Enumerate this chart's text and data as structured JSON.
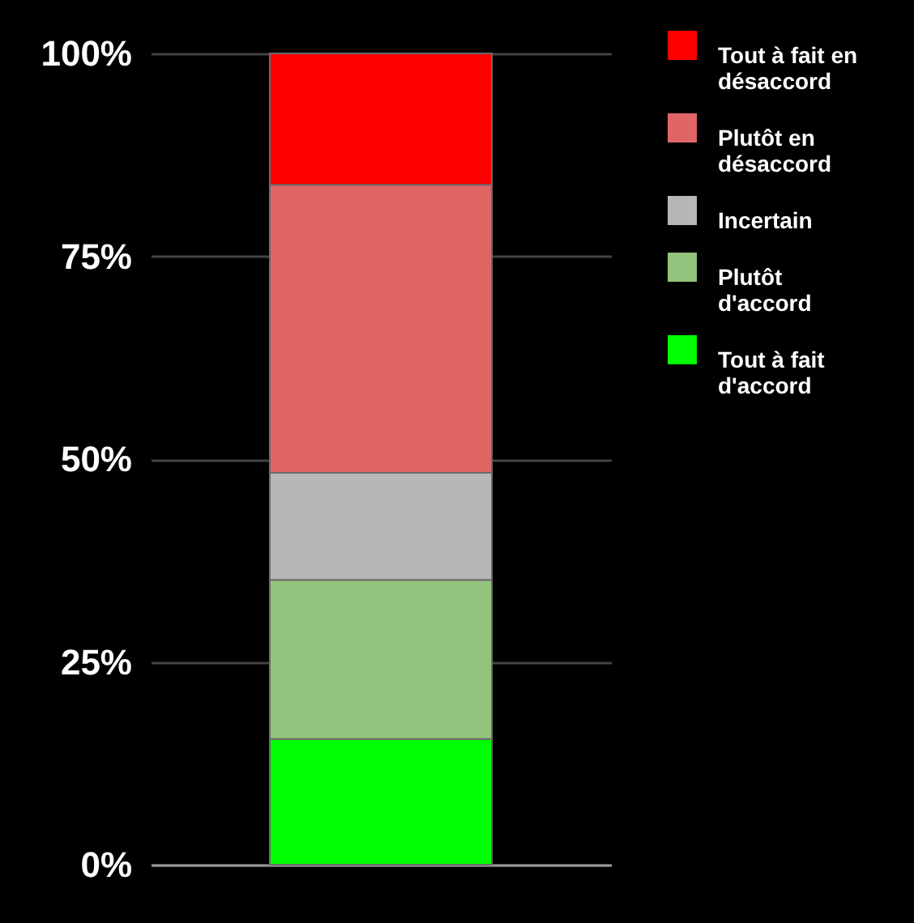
{
  "chart_data": {
    "type": "bar",
    "stacked": true,
    "categories": [
      null
    ],
    "series": [
      {
        "name": "Tout à fait d'accord",
        "color": "#00ff00",
        "values": [
          15.5
        ]
      },
      {
        "name": "Plutôt d'accord",
        "color": "#93c47d",
        "values": [
          19.6
        ]
      },
      {
        "name": "Incertain",
        "color": "#b7b7b7",
        "values": [
          13.2
        ]
      },
      {
        "name": "Plutôt en désaccord",
        "color": "#e06666",
        "values": [
          35.5
        ]
      },
      {
        "name": "Tout à fait en désaccord",
        "color": "#ff0000",
        "values": [
          16.2
        ]
      }
    ],
    "ylim": [
      0,
      100
    ],
    "yticks": [
      {
        "value": 0,
        "label": "0%"
      },
      {
        "value": 25,
        "label": "25%"
      },
      {
        "value": 50,
        "label": "50%"
      },
      {
        "value": 75,
        "label": "75%"
      },
      {
        "value": 100,
        "label": "100%"
      }
    ],
    "grid": "y",
    "legend": "top right",
    "tick_labels": "y"
  }
}
